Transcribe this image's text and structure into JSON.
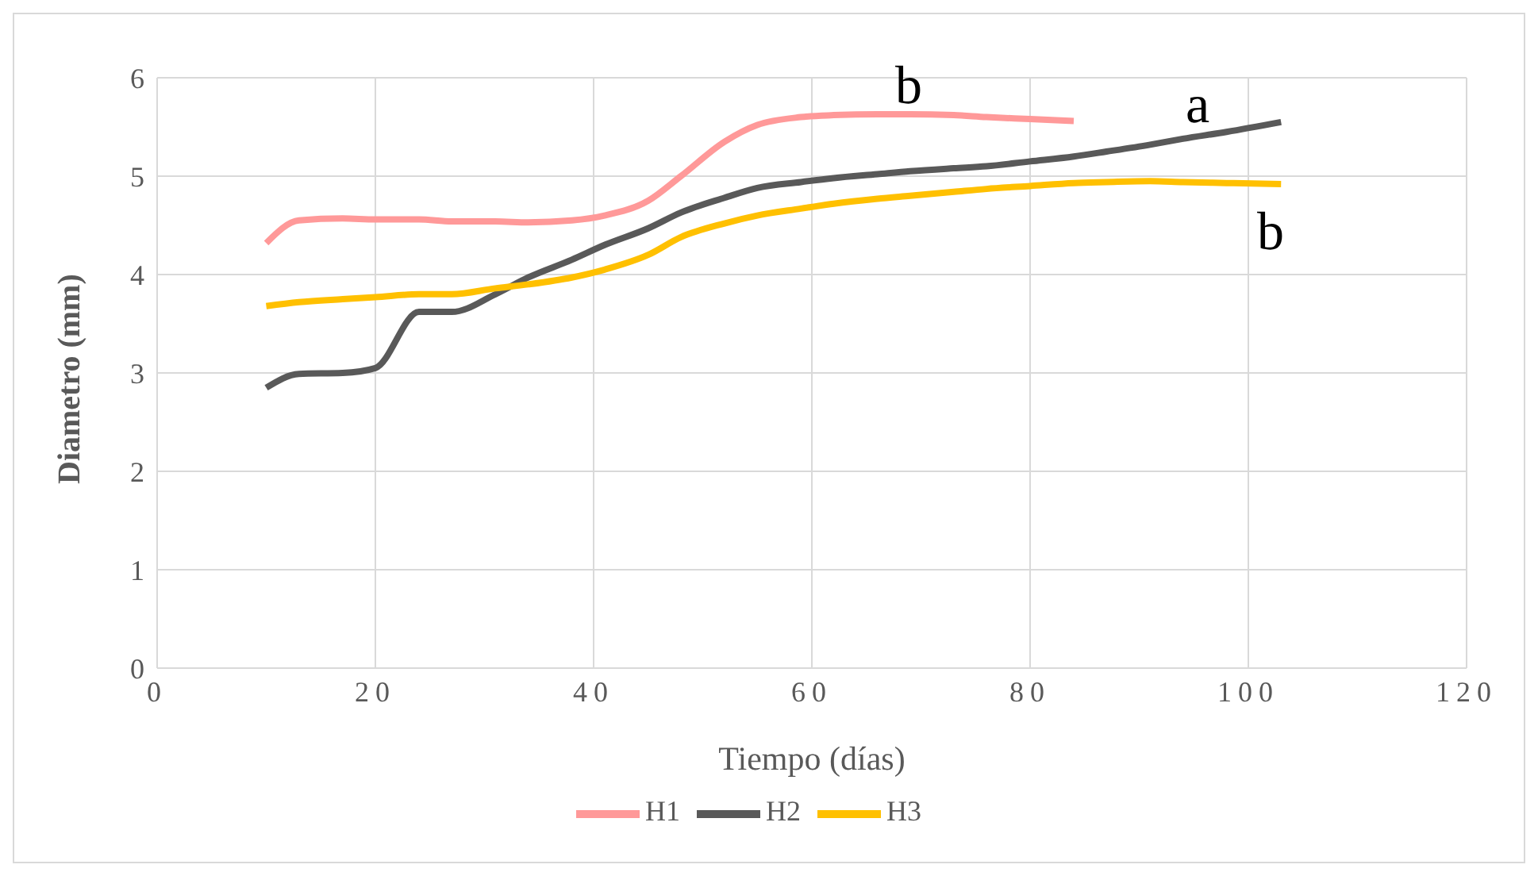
{
  "chart_data": {
    "type": "line",
    "xlabel": "Tiempo (días)",
    "ylabel": "Diametro (mm)",
    "xlim": [
      0,
      120
    ],
    "xticks": [
      0,
      20,
      40,
      60,
      80,
      100,
      120
    ],
    "ylim": [
      0,
      6
    ],
    "yticks": [
      0,
      1,
      2,
      3,
      4,
      5,
      6
    ],
    "grid": true,
    "legend": "bottom",
    "marker": "none",
    "line_style": "solid",
    "series": [
      {
        "name": "H1",
        "color": "#ff9999",
        "x": [
          10,
          13,
          17,
          20,
          24,
          27,
          31,
          34,
          38,
          41,
          45,
          48,
          52,
          55,
          59,
          62,
          66,
          69,
          73,
          76,
          80,
          84
        ],
        "values": [
          4.32,
          4.55,
          4.57,
          4.56,
          4.56,
          4.54,
          4.54,
          4.53,
          4.55,
          4.6,
          4.75,
          5.0,
          5.35,
          5.52,
          5.6,
          5.62,
          5.63,
          5.63,
          5.62,
          5.6,
          5.58,
          5.56
        ]
      },
      {
        "name": "H2",
        "color": "#595959",
        "x": [
          10,
          13,
          17,
          20,
          24,
          27,
          31,
          34,
          38,
          41,
          45,
          48,
          52,
          55,
          59,
          62,
          66,
          69,
          73,
          76,
          80,
          84,
          87,
          91,
          94,
          98,
          103
        ],
        "values": [
          2.85,
          2.99,
          3.0,
          3.05,
          3.62,
          3.62,
          3.8,
          3.97,
          4.15,
          4.3,
          4.47,
          4.63,
          4.78,
          4.88,
          4.94,
          4.98,
          5.02,
          5.05,
          5.08,
          5.1,
          5.15,
          5.2,
          5.25,
          5.32,
          5.38,
          5.45,
          5.55
        ]
      },
      {
        "name": "H3",
        "color": "#ffc000",
        "x": [
          10,
          13,
          17,
          20,
          24,
          27,
          31,
          34,
          38,
          41,
          45,
          48,
          52,
          55,
          59,
          62,
          66,
          69,
          73,
          76,
          80,
          84,
          87,
          91,
          94,
          98,
          103
        ],
        "values": [
          3.68,
          3.72,
          3.75,
          3.77,
          3.8,
          3.8,
          3.86,
          3.9,
          3.97,
          4.05,
          4.2,
          4.38,
          4.52,
          4.6,
          4.67,
          4.72,
          4.77,
          4.8,
          4.84,
          4.87,
          4.9,
          4.93,
          4.94,
          4.95,
          4.94,
          4.93,
          4.92
        ]
      }
    ],
    "annotations": [
      "b",
      "a",
      "b"
    ]
  }
}
